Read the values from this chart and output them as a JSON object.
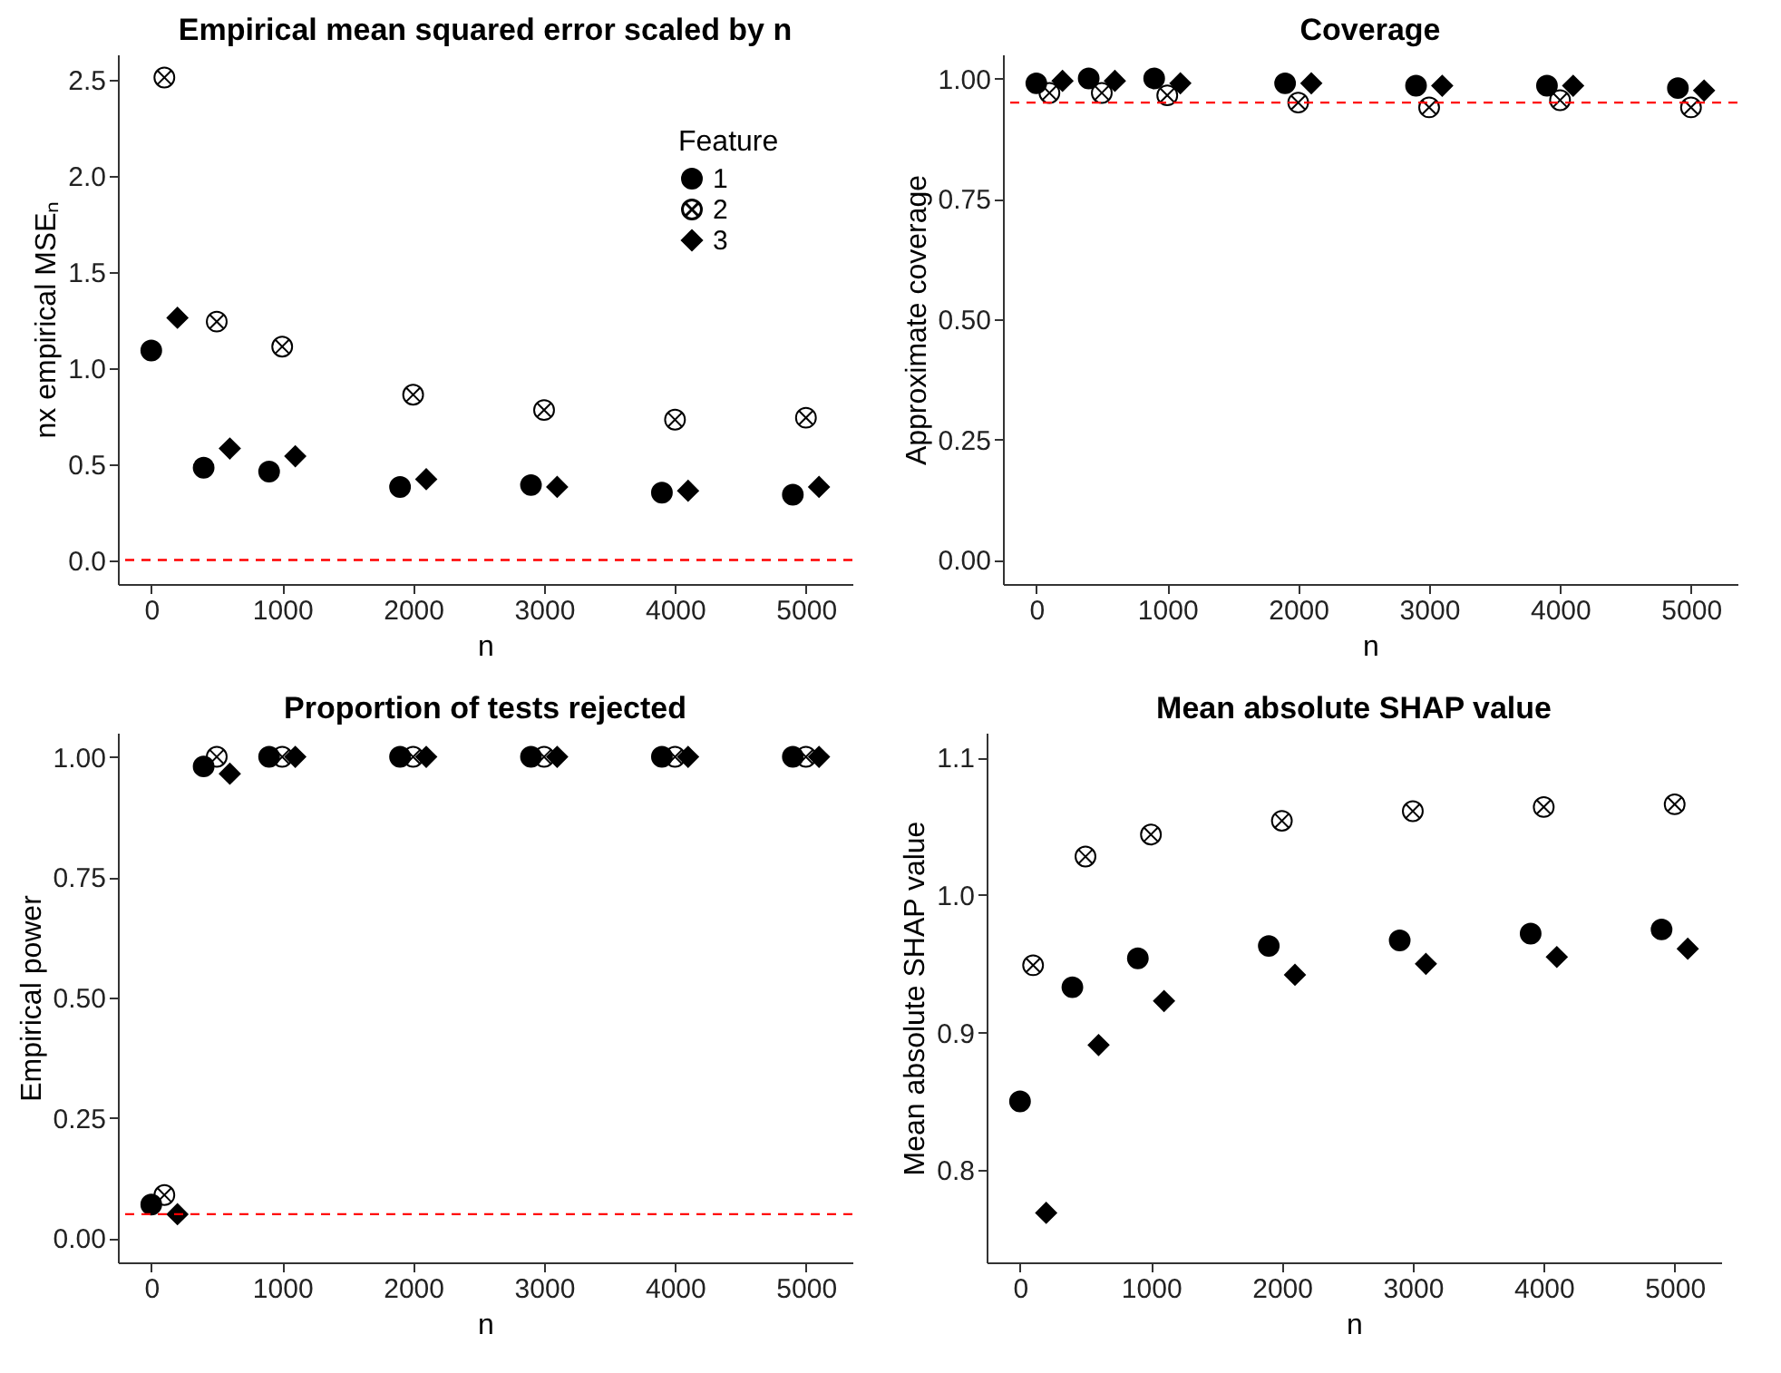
{
  "chart_data": [
    {
      "type": "scatter",
      "title": "Empirical mean squared error scaled by n",
      "xlabel": "n",
      "ylabel": "nx empirical MSEₙ",
      "legend_title": "Feature",
      "legend": "top right",
      "grid": false,
      "xlim": [
        -255,
        5355
      ],
      "xticks": [
        0,
        1000,
        2000,
        3000,
        4000,
        5000
      ],
      "ylim": [
        -0.125,
        2.63
      ],
      "yticks": [
        {
          "value": 0,
          "label": "0.0"
        },
        0.5,
        {
          "value": 1,
          "label": "1.0"
        },
        1.5,
        {
          "value": 2,
          "label": "2.0"
        },
        2.5
      ],
      "ref_lines": [
        {
          "axis": "y",
          "value": 0,
          "color": "#ff0000",
          "line_style": "dashed"
        }
      ],
      "series": [
        {
          "name": "1",
          "color": "#000000",
          "marker": "circle",
          "x": [
            0,
            400,
            900,
            1900,
            2900,
            3900,
            4900
          ],
          "values": [
            1.09,
            0.48,
            0.46,
            0.38,
            0.39,
            0.35,
            0.34
          ]
        },
        {
          "name": "2",
          "color": "#000000",
          "marker": "cross",
          "x": [
            100,
            500,
            1000,
            2000,
            3000,
            4000,
            5000
          ],
          "values": [
            2.51,
            1.24,
            1.11,
            0.86,
            0.78,
            0.73,
            0.74
          ]
        },
        {
          "name": "3",
          "color": "#000000",
          "marker": "diamond",
          "x": [
            200,
            600,
            1100,
            2100,
            3100,
            4100,
            5100
          ],
          "values": [
            1.26,
            0.58,
            0.54,
            0.42,
            0.38,
            0.36,
            0.38
          ]
        }
      ]
    },
    {
      "type": "scatter",
      "title": "Coverage",
      "xlabel": "n",
      "ylabel": "Approximate coverage",
      "grid": false,
      "xlim": [
        -255,
        5355
      ],
      "xticks": [
        0,
        1000,
        2000,
        3000,
        4000,
        5000
      ],
      "ylim": [
        -0.05,
        1.05
      ],
      "yticks": [
        {
          "value": 0,
          "label": "0.00"
        },
        0.25,
        {
          "value": 0.5,
          "label": "0.50"
        },
        0.75,
        {
          "value": 1,
          "label": "1.00"
        }
      ],
      "ref_lines": [
        {
          "axis": "y",
          "value": 0.95,
          "color": "#ff0000",
          "line_style": "dashed"
        }
      ],
      "series": [
        {
          "color": "#000000",
          "marker": "circle",
          "x": [
            0,
            400,
            900,
            1900,
            2900,
            3900,
            4900
          ],
          "values": [
            0.99,
            1.0,
            1.0,
            0.99,
            0.985,
            0.985,
            0.98
          ]
        },
        {
          "color": "#000000",
          "marker": "cross",
          "x": [
            100,
            500,
            1000,
            2000,
            3000,
            4000,
            5000
          ],
          "values": [
            0.97,
            0.97,
            0.965,
            0.95,
            0.94,
            0.955,
            0.94
          ]
        },
        {
          "color": "#000000",
          "marker": "diamond",
          "x": [
            200,
            600,
            1100,
            2100,
            3100,
            4100,
            5100
          ],
          "values": [
            0.995,
            0.995,
            0.99,
            0.99,
            0.985,
            0.985,
            0.975
          ]
        }
      ]
    },
    {
      "type": "scatter",
      "title": "Proportion of tests rejected",
      "xlabel": "n",
      "ylabel": "Empirical power",
      "grid": false,
      "xlim": [
        -255,
        5355
      ],
      "xticks": [
        0,
        1000,
        2000,
        3000,
        4000,
        5000
      ],
      "ylim": [
        -0.05,
        1.05
      ],
      "yticks": [
        {
          "value": 0,
          "label": "0.00"
        },
        0.25,
        {
          "value": 0.5,
          "label": "0.50"
        },
        0.75,
        {
          "value": 1,
          "label": "1.00"
        }
      ],
      "ref_lines": [
        {
          "axis": "y",
          "value": 0.05,
          "color": "#ff0000",
          "line_style": "dashed"
        }
      ],
      "series": [
        {
          "color": "#000000",
          "marker": "circle",
          "x": [
            0,
            400,
            900,
            1900,
            2900,
            3900,
            4900
          ],
          "values": [
            0.07,
            0.98,
            1.0,
            1.0,
            1.0,
            1.0,
            1.0
          ]
        },
        {
          "color": "#000000",
          "marker": "cross",
          "x": [
            100,
            500,
            1000,
            2000,
            3000,
            4000,
            5000
          ],
          "values": [
            0.09,
            1.0,
            1.0,
            1.0,
            1.0,
            1.0,
            1.0
          ]
        },
        {
          "color": "#000000",
          "marker": "diamond",
          "x": [
            200,
            600,
            1100,
            2100,
            3100,
            4100,
            5100
          ],
          "values": [
            0.05,
            0.965,
            1.0,
            1.0,
            1.0,
            1.0,
            1.0
          ]
        }
      ]
    },
    {
      "type": "scatter",
      "title": "Mean absolute SHAP value",
      "xlabel": "n",
      "ylabel": "Mean absolute SHAP value",
      "grid": false,
      "xlim": [
        -255,
        5355
      ],
      "xticks": [
        0,
        1000,
        2000,
        3000,
        4000,
        5000
      ],
      "ylim": [
        0.733,
        1.118
      ],
      "yticks": [
        0.8,
        0.9,
        {
          "value": 1.0,
          "label": "1.0"
        },
        1.1
      ],
      "series": [
        {
          "color": "#000000",
          "marker": "circle",
          "x": [
            0,
            400,
            900,
            1900,
            2900,
            3900,
            4900
          ],
          "values": [
            0.85,
            0.933,
            0.954,
            0.963,
            0.967,
            0.972,
            0.975
          ]
        },
        {
          "color": "#000000",
          "marker": "cross",
          "x": [
            100,
            500,
            1000,
            2000,
            3000,
            4000,
            5000
          ],
          "values": [
            0.949,
            1.028,
            1.044,
            1.054,
            1.061,
            1.064,
            1.066
          ]
        },
        {
          "color": "#000000",
          "marker": "diamond",
          "x": [
            200,
            600,
            1100,
            2100,
            3100,
            4100,
            5100
          ],
          "values": [
            0.769,
            0.891,
            0.923,
            0.942,
            0.95,
            0.955,
            0.961
          ]
        }
      ]
    }
  ]
}
